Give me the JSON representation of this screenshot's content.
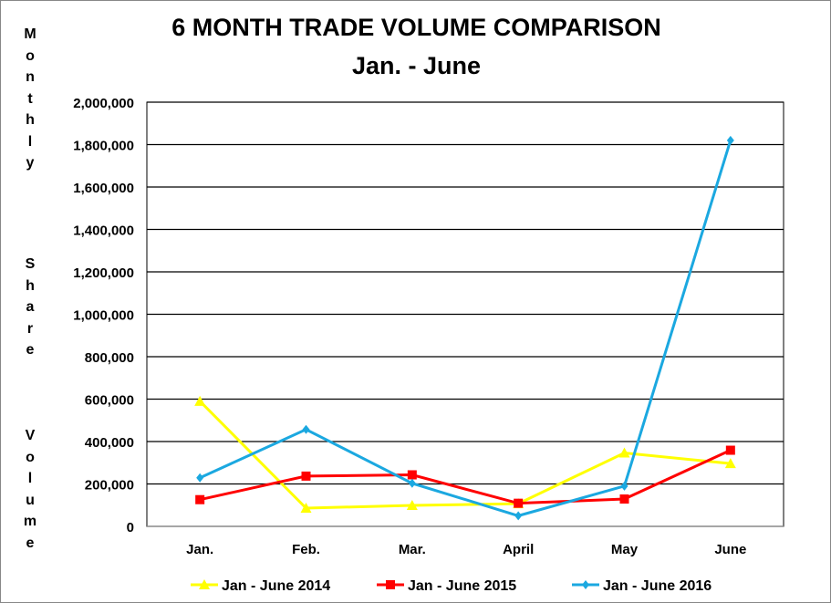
{
  "chart_data": {
    "type": "line",
    "title": "6 MONTH  TRADE VOLUME COMPARISON",
    "subtitle": "Jan. - June",
    "ylabel": "Monthly Share Volume",
    "xlabel": "",
    "categories": [
      "Jan.",
      "Feb.",
      "Mar.",
      "April",
      "May",
      "June"
    ],
    "ylim": [
      0,
      2000000
    ],
    "yticks": [
      "0",
      "200,000",
      "400,000",
      "600,000",
      "800,000",
      "1,000,000",
      "1,200,000",
      "1,400,000",
      "1,600,000",
      "1,800,000",
      "2,000,000"
    ],
    "grid": true,
    "legend": "bottom",
    "series": [
      {
        "name": "Jan - June 2014",
        "color": "#ffff00",
        "marker": "triangle",
        "values": [
          590000,
          86000,
          99000,
          107000,
          346000,
          296000
        ]
      },
      {
        "name": "Jan - June 2015",
        "color": "#ff0000",
        "marker": "square",
        "values": [
          126000,
          237000,
          243000,
          109000,
          129000,
          359000
        ]
      },
      {
        "name": "Jan - June 2016",
        "color": "#1ba8e0",
        "marker": "diamond",
        "values": [
          229000,
          457000,
          203000,
          50000,
          190000,
          1820000
        ]
      }
    ]
  }
}
